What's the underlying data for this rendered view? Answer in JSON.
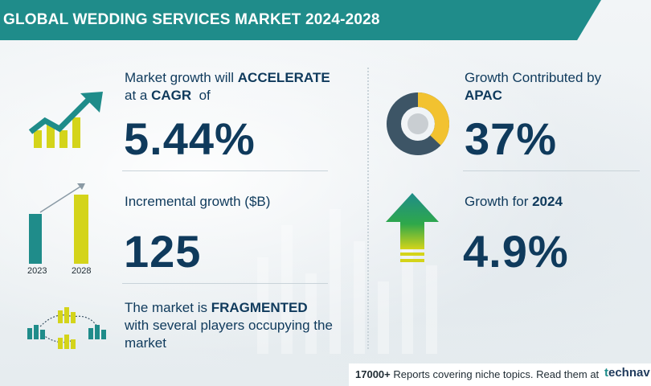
{
  "header": {
    "title": "GLOBAL WEDDING SERVICES MARKET 2024-2028"
  },
  "cagr": {
    "label_pre": "Market growth will ",
    "label_bold": "ACCELERATE",
    "label_line2_pre": "at a ",
    "label_line2_bold": "CAGR",
    "label_line2_post": "  of",
    "value": "5.44%"
  },
  "incremental": {
    "label": "Incremental growth ($B)",
    "value": "125",
    "years": [
      "2023",
      "2028"
    ]
  },
  "fragmented": {
    "line1_pre": "The market is ",
    "line1_bold": "FRAGMENTED",
    "line2": "with several players occupying the",
    "line3": "market"
  },
  "apac": {
    "label": "Growth Contributed by",
    "label_bold": "APAC",
    "value": "37%",
    "share": 0.37
  },
  "growth2024": {
    "label": "Growth for ",
    "label_bold": "2024",
    "value": "4.9%"
  },
  "footer": {
    "count": "17000+",
    "text": " Reports covering niche topics. Read them at",
    "logo_t": "t",
    "logo_rest": "echnav"
  },
  "colors": {
    "teal": "#1f8c8a",
    "navy": "#0f3a5c",
    "yellow": "#d4d41a",
    "gold": "#f2c230",
    "slate": "#3d5566",
    "green": "#2ea84a"
  }
}
